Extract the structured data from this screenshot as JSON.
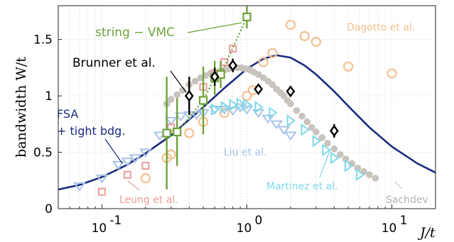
{
  "chart_data": {
    "type": "scatter",
    "xlabel": "J/t",
    "ylabel": "bandwidth W/t",
    "xscale": "log",
    "xlim": [
      0.05,
      20
    ],
    "ylim": [
      0,
      1.8
    ],
    "grid": true,
    "xticks": [
      {
        "value": 0.1,
        "base": "10",
        "exp": "-1"
      },
      {
        "value": 1,
        "base": "10",
        "exp": "0"
      },
      {
        "value": 10,
        "base": "10",
        "exp": "1"
      }
    ],
    "yticks": [
      {
        "value": 0,
        "label": "0"
      },
      {
        "value": 0.5,
        "label": "0.5"
      },
      {
        "value": 1,
        "label": "1"
      },
      {
        "value": 1.5,
        "label": "1.5"
      }
    ],
    "colors": {
      "fsa": "#1a2b80",
      "string_vmc": "#6ea339",
      "brunner": "#000000",
      "dagotto": "#f5c08f",
      "liu": "#a9c4e8",
      "martinez": "#7fd9ec",
      "leung": "#ef9b9b",
      "sachdev": "#c8c3bc",
      "grid": "#e6e6e6"
    },
    "annotations": {
      "string_vmc": "string − VMC",
      "brunner": "Brunner et al.",
      "dagotto": "Dagotto et al.",
      "fsa_line1": "FSA",
      "fsa_line2": "+ tight bdg.",
      "liu": "Liu et al.",
      "martinez": "Martinez et al.",
      "leung": "Leung et al.",
      "sachdev": "Sachdev"
    },
    "series": [
      {
        "key": "fsa",
        "kind": "line",
        "x": [
          0.05,
          0.07,
          0.1,
          0.15,
          0.2,
          0.3,
          0.4,
          0.5,
          0.7,
          1.0,
          1.3,
          1.6,
          2.0,
          2.5,
          3.0,
          4.0,
          5.0,
          7.0,
          10,
          15,
          20
        ],
        "y": [
          0.17,
          0.21,
          0.28,
          0.39,
          0.49,
          0.65,
          0.79,
          0.9,
          1.07,
          1.24,
          1.33,
          1.36,
          1.34,
          1.27,
          1.19,
          1.04,
          0.91,
          0.72,
          0.55,
          0.4,
          0.32
        ]
      },
      {
        "key": "sachdev",
        "kind": "dots",
        "x": [
          0.28,
          0.3,
          0.33,
          0.36,
          0.4,
          0.44,
          0.48,
          0.52,
          0.56,
          0.6,
          0.65,
          0.7,
          0.75,
          0.8,
          0.86,
          0.92,
          0.98,
          1.05,
          1.12,
          1.2,
          1.3,
          1.4,
          1.5,
          1.6,
          1.7,
          1.8,
          1.9,
          2.0,
          2.2,
          2.4,
          2.6,
          2.8,
          3.0,
          3.3,
          3.6,
          4.0,
          4.4,
          4.8,
          5.3,
          5.8,
          6.4,
          7.0,
          7.7
        ],
        "y": [
          0.93,
          0.97,
          1.01,
          1.05,
          1.1,
          1.13,
          1.16,
          1.18,
          1.2,
          1.21,
          1.22,
          1.23,
          1.24,
          1.25,
          1.25,
          1.25,
          1.24,
          1.23,
          1.21,
          1.19,
          1.16,
          1.13,
          1.1,
          1.06,
          1.03,
          1.0,
          0.96,
          0.93,
          0.87,
          0.82,
          0.77,
          0.72,
          0.68,
          0.63,
          0.58,
          0.53,
          0.48,
          0.44,
          0.4,
          0.36,
          0.33,
          0.3,
          0.27
        ]
      },
      {
        "key": "dagotto",
        "kind": "circles",
        "x": [
          0.2,
          0.28,
          0.3,
          0.4,
          0.5,
          0.7,
          1.0,
          1.1,
          1.3,
          1.5,
          2.0,
          2.5,
          3.0,
          5.0,
          10.0
        ],
        "y": [
          0.27,
          0.45,
          0.48,
          0.67,
          0.77,
          0.85,
          1.0,
          1.05,
          1.3,
          1.38,
          1.63,
          1.53,
          1.48,
          1.26,
          1.2
        ]
      },
      {
        "key": "liu",
        "kind": "triangle-down",
        "x": [
          0.07,
          0.1,
          0.13,
          0.15,
          0.17,
          0.2,
          0.25,
          0.3,
          0.35,
          0.4,
          0.45,
          0.5,
          0.6,
          0.7,
          0.8,
          0.9,
          1.0,
          1.2,
          1.4,
          1.6,
          1.8,
          2.0
        ],
        "y": [
          0.2,
          0.27,
          0.39,
          0.42,
          0.45,
          0.5,
          0.65,
          0.78,
          0.82,
          0.83,
          0.83,
          0.85,
          0.88,
          0.88,
          0.87,
          0.9,
          0.88,
          0.85,
          0.8,
          0.75,
          0.7,
          0.65
        ]
      },
      {
        "key": "martinez",
        "kind": "triangle-right",
        "x": [
          0.6,
          0.7,
          0.8,
          0.9,
          1.0,
          1.2,
          1.5,
          2.0,
          2.5,
          3.0,
          3.5,
          4.0,
          5.0,
          6.0
        ],
        "y": [
          0.88,
          0.9,
          0.92,
          0.93,
          0.92,
          0.9,
          0.85,
          0.78,
          0.7,
          0.6,
          0.52,
          0.45,
          0.38,
          0.3
        ]
      },
      {
        "key": "leung",
        "kind": "squares",
        "x": [
          0.1,
          0.15,
          0.2,
          0.3,
          0.5,
          0.6,
          0.7,
          0.8
        ],
        "y": [
          0.15,
          0.3,
          0.38,
          0.72,
          1.08,
          1.2,
          1.3,
          1.42
        ]
      },
      {
        "key": "brunner",
        "kind": "diamonds",
        "x": [
          0.4,
          0.6,
          0.8,
          1.2,
          2.0,
          4.0
        ],
        "y": [
          1.0,
          1.17,
          1.27,
          1.06,
          1.04,
          0.69
        ],
        "err": [
          0.17,
          0.08,
          0.06,
          0.04,
          0.04,
          0.06
        ]
      },
      {
        "key": "string_vmc",
        "kind": "squares-dashed",
        "x": [
          0.28,
          0.33,
          0.5,
          0.6,
          0.66,
          1.0
        ],
        "y": [
          0.67,
          0.68,
          0.96,
          1.16,
          1.19,
          1.7
        ],
        "err": [
          0.5,
          0.3,
          0.3,
          0.15,
          0.12,
          0.1
        ]
      }
    ]
  }
}
